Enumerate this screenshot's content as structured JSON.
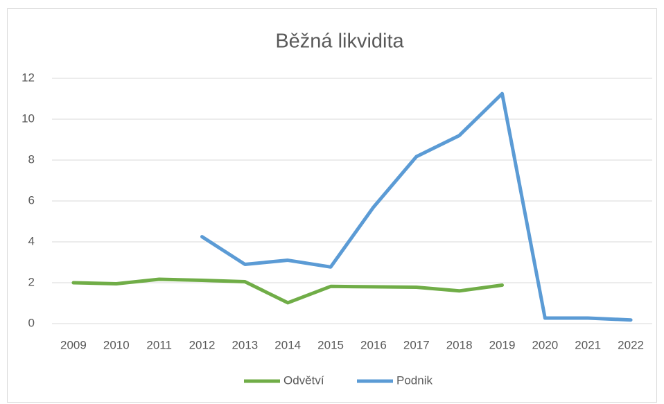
{
  "chart_data": {
    "type": "line",
    "title": "Běžná likvidita",
    "categories": [
      "2009",
      "2010",
      "2011",
      "2012",
      "2013",
      "2014",
      "2015",
      "2016",
      "2017",
      "2018",
      "2019",
      "2020",
      "2021",
      "2022"
    ],
    "series": [
      {
        "name": "Odvětví",
        "color": "#70ad47",
        "values": [
          2.0,
          1.95,
          2.17,
          2.12,
          2.05,
          1.02,
          1.82,
          1.8,
          1.78,
          1.6,
          1.88,
          null,
          null,
          null
        ]
      },
      {
        "name": "Podnik",
        "color": "#5b9bd5",
        "values": [
          null,
          null,
          null,
          4.25,
          2.9,
          3.1,
          2.77,
          5.7,
          8.17,
          9.2,
          11.25,
          0.27,
          0.27,
          0.18
        ]
      }
    ],
    "ylim": [
      0,
      12
    ],
    "yticks": [
      0,
      2,
      4,
      6,
      8,
      10,
      12
    ],
    "grid": true,
    "legend": "bottom"
  }
}
